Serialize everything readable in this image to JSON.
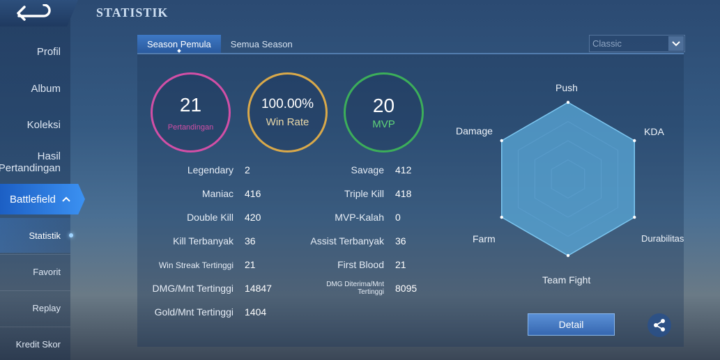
{
  "header": {
    "title": "STATISTIK"
  },
  "sidebar": {
    "items": [
      {
        "label": "Profil"
      },
      {
        "label": "Album"
      },
      {
        "label": "Koleksi"
      },
      {
        "label_line1": "Hasil",
        "label_line2": "Pertandingan"
      },
      {
        "label": "Battlefield"
      }
    ],
    "subitems": [
      {
        "label": "Statistik"
      },
      {
        "label": "Favorit"
      },
      {
        "label": "Replay"
      },
      {
        "label": "Kredit Skor"
      }
    ]
  },
  "tabs": [
    {
      "label": "Season Pemula",
      "active": true
    },
    {
      "label": "Semua Season",
      "active": false
    }
  ],
  "mode_select": {
    "value": "Classic"
  },
  "summary": {
    "matches": {
      "value": "21",
      "label": "Pertandingan",
      "color": "#d24fa6"
    },
    "win_rate": {
      "value": "100.00%",
      "label": "Win Rate",
      "color": "#d9a94a"
    },
    "mvp": {
      "value": "20",
      "label": "MVP",
      "color": "#3cae5a"
    }
  },
  "stats_left": [
    {
      "label": "Legendary",
      "value": "2"
    },
    {
      "label": "Maniac",
      "value": "416"
    },
    {
      "label": "Double Kill",
      "value": "420"
    },
    {
      "label": "Kill Terbanyak",
      "value": "36"
    },
    {
      "label": "Win Streak Tertinggi",
      "value": "21"
    },
    {
      "label": "DMG/Mnt Tertinggi",
      "value": "14847"
    },
    {
      "label": "Gold/Mnt Tertinggi",
      "value": "1404"
    }
  ],
  "stats_right": [
    {
      "label": "Savage",
      "value": "412"
    },
    {
      "label": "Triple Kill",
      "value": "418"
    },
    {
      "label": "MVP-Kalah",
      "value": "0"
    },
    {
      "label": "Assist Terbanyak",
      "value": "36"
    },
    {
      "label": "First Blood",
      "value": "21"
    },
    {
      "label_line1": "DMG Diterima/Mnt",
      "label_line2": "Tertinggi",
      "value": "8095"
    }
  ],
  "radar": {
    "axes": [
      "Push",
      "KDA",
      "Durabilitas",
      "Team Fight",
      "Farm",
      "Damage"
    ],
    "values": [
      1,
      1,
      1,
      1,
      1,
      1
    ],
    "fill_color": "#5aa8d8"
  },
  "buttons": {
    "detail": "Detail"
  }
}
